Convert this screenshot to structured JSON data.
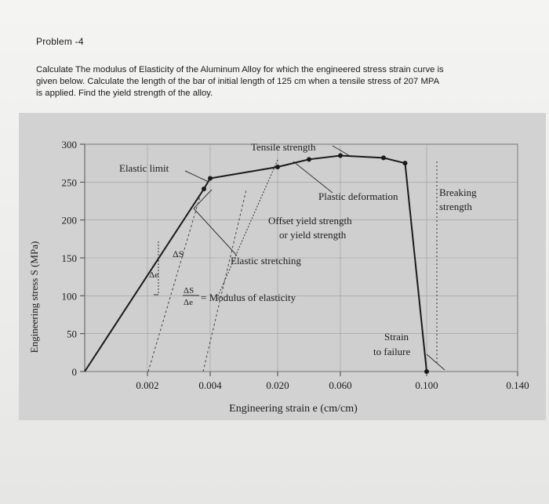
{
  "problem": {
    "title": "Problem -4",
    "lines": [
      "Calculate The modulus of Elasticity of the Aluminum Alloy for which the engineered stress strain curve is",
      "given below.  Calculate the length of the bar of initial length of 125 cm when a tensile stress of 207 MPA",
      "is applied.  Find the yield strength of the alloy."
    ]
  },
  "chart_data": {
    "type": "line",
    "ylabel": "Engineering stress S (MPa)",
    "xlabel": "Engineering strain e (cm/cm)",
    "y_ticks": [
      "300",
      "250",
      "200",
      "150",
      "100",
      "50",
      "0"
    ],
    "x_ticks": [
      "0.002",
      "0.004",
      "0.020",
      "0.060",
      "0.100",
      "0.140"
    ],
    "ylim": [
      0,
      300
    ],
    "grid": true,
    "series": [
      {
        "points": [
          {
            "x": 0,
            "y": 0
          },
          {
            "x": 0.0038,
            "y": 241
          },
          {
            "x": 0.004,
            "y": 255
          },
          {
            "x": 0.02,
            "y": 270
          },
          {
            "x": 0.04,
            "y": 280
          },
          {
            "x": 0.06,
            "y": 285
          },
          {
            "x": 0.08,
            "y": 282
          },
          {
            "x": 0.09,
            "y": 275
          },
          {
            "x": 0.1,
            "y": 0
          }
        ]
      }
    ],
    "annotations": {
      "tensile_strength": "Tensile strength",
      "elastic_limit": "Elastic limit",
      "plastic_deformation": "Plastic deformation",
      "breaking_strength_1": "Breaking",
      "breaking_strength_2": "strength",
      "offset_yield_1": "Offset yield strength",
      "offset_yield_2": "or yield strength",
      "elastic_stretching": "Elastic stretching",
      "delta_s": "ΔS",
      "delta_e": "Δe",
      "modulus_numerator": "ΔS",
      "modulus_denominator": "Δe",
      "modulus_label": "= Modulus of elasticity",
      "strain_failure_1": "Strain",
      "strain_failure_2": "to failure"
    }
  }
}
